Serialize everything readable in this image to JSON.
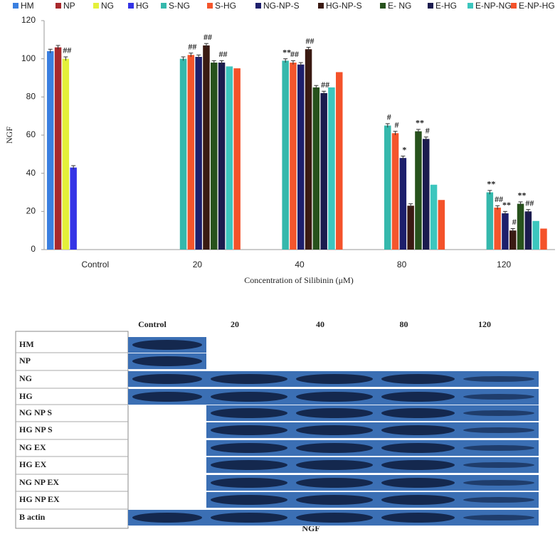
{
  "chart_data": {
    "type": "bar",
    "x_label": "Concentration of Silibinin (μM)",
    "y_label": "NGF",
    "categories": [
      "Control",
      "20",
      "40",
      "80",
      "120"
    ],
    "ylim": [
      0,
      120
    ],
    "yticks": [
      0,
      20,
      40,
      60,
      80,
      100,
      120
    ],
    "grid": false,
    "legend": "top",
    "series": [
      {
        "name": "HM",
        "color": "#3a7fe0",
        "values": [
          104,
          null,
          null,
          null,
          null
        ],
        "errors": [
          1,
          null,
          null,
          null,
          null
        ],
        "marks": [
          null,
          null,
          null,
          null,
          null
        ]
      },
      {
        "name": "NP",
        "color": "#a8282c",
        "values": [
          106,
          null,
          null,
          null,
          null
        ],
        "errors": [
          1,
          null,
          null,
          null,
          null
        ],
        "marks": [
          null,
          null,
          null,
          null,
          null
        ]
      },
      {
        "name": "NG",
        "color": "#e4f03a",
        "values": [
          100,
          null,
          null,
          null,
          null
        ],
        "errors": [
          1,
          null,
          null,
          null,
          null
        ],
        "marks": [
          "##",
          null,
          null,
          null,
          null
        ]
      },
      {
        "name": "HG",
        "color": "#3434e6",
        "values": [
          43,
          null,
          null,
          null,
          null
        ],
        "errors": [
          1,
          null,
          null,
          null,
          null
        ],
        "marks": [
          null,
          null,
          null,
          null,
          null
        ]
      },
      {
        "name": "S-NG",
        "color": "#35b8ac",
        "values": [
          null,
          100,
          99,
          65,
          30
        ],
        "errors": [
          null,
          1,
          1,
          1,
          1
        ],
        "marks": [
          null,
          null,
          "**",
          "#",
          "**"
        ]
      },
      {
        "name": "S-HG",
        "color": "#f4552c",
        "values": [
          null,
          102,
          98,
          61,
          22
        ],
        "errors": [
          null,
          1,
          1,
          1,
          1
        ],
        "marks": [
          null,
          "##",
          "##",
          "#",
          "##"
        ]
      },
      {
        "name": "NG-NP-S",
        "color": "#1d1f6c",
        "values": [
          null,
          101,
          97,
          48,
          19
        ],
        "errors": [
          null,
          1,
          1,
          1,
          1
        ],
        "marks": [
          null,
          null,
          null,
          "*",
          "**"
        ]
      },
      {
        "name": "HG-NP-S",
        "color": "#3a1a12",
        "values": [
          null,
          107,
          105,
          23,
          10
        ],
        "errors": [
          null,
          1,
          1,
          1,
          1
        ],
        "marks": [
          null,
          "##",
          "##",
          null,
          "#"
        ]
      },
      {
        "name": "E-  NG",
        "color": "#27521c",
        "values": [
          null,
          98,
          85,
          62,
          24
        ],
        "errors": [
          null,
          1,
          1,
          1,
          1
        ],
        "marks": [
          null,
          null,
          null,
          "**",
          "**"
        ]
      },
      {
        "name": "E-HG",
        "color": "#1b1b4e",
        "values": [
          null,
          98,
          82,
          58,
          20
        ],
        "errors": [
          null,
          1,
          1,
          1,
          1
        ],
        "marks": [
          null,
          "##",
          "##",
          "#",
          "##"
        ]
      },
      {
        "name": "E-NP-NG",
        "color": "#3cc6be",
        "values": [
          null,
          96,
          85,
          34,
          15
        ],
        "errors": [
          null,
          null,
          null,
          null,
          null
        ],
        "marks": [
          null,
          null,
          null,
          null,
          null
        ]
      },
      {
        "name": "E-NP-HG",
        "color": "#f4522a",
        "values": [
          null,
          95,
          93,
          26,
          11
        ],
        "errors": [
          null,
          null,
          null,
          null,
          null
        ],
        "marks": [
          null,
          null,
          null,
          null,
          null
        ]
      }
    ]
  },
  "blot": {
    "columns": [
      "Control",
      "20",
      "40",
      "80",
      "120"
    ],
    "rows": [
      "HM",
      "NP",
      "NG",
      "HG",
      "NG NP S",
      "HG NP S",
      "NG EX",
      "HG EX",
      "NG NP EX",
      "HG NP EX",
      "B actin"
    ],
    "caption": "NGF"
  }
}
